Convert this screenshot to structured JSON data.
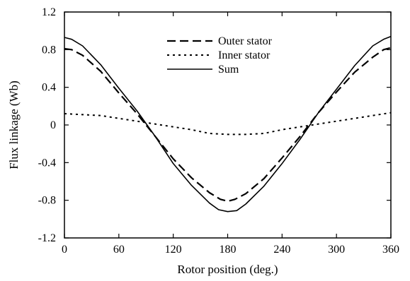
{
  "chart_data": {
    "type": "line",
    "title": "",
    "xlabel": "Rotor position (deg.)",
    "ylabel": "Flux linkage (Wb)",
    "xlim": [
      0,
      360
    ],
    "ylim": [
      -1.2,
      1.2
    ],
    "xticks": [
      0,
      60,
      120,
      180,
      240,
      300,
      360
    ],
    "yticks": [
      1.2,
      0.8,
      0.4,
      0,
      -0.4,
      -0.8,
      -1.2
    ],
    "xtick_labels": [
      "0",
      "60",
      "120",
      "180",
      "240",
      "300",
      "360"
    ],
    "ytick_labels": [
      "1.2",
      "0.8",
      "0.4",
      "0",
      "-0.4",
      "-0.8",
      "-1.2"
    ],
    "grid": false,
    "legend_position": "top-center",
    "series": [
      {
        "name": "Outer stator",
        "style": "dashed",
        "color": "#000000",
        "x": [
          0,
          8,
          20,
          40,
          60,
          80,
          100,
          120,
          140,
          160,
          172,
          180,
          188,
          200,
          220,
          240,
          260,
          280,
          300,
          320,
          340,
          352,
          360
        ],
        "y": [
          0.81,
          0.8,
          0.74,
          0.57,
          0.34,
          0.12,
          -0.12,
          -0.36,
          -0.56,
          -0.72,
          -0.79,
          -0.81,
          -0.79,
          -0.73,
          -0.57,
          -0.35,
          -0.12,
          0.13,
          0.35,
          0.56,
          0.72,
          0.8,
          0.82
        ]
      },
      {
        "name": "Inner stator",
        "style": "dotted",
        "color": "#000000",
        "x": [
          0,
          20,
          40,
          60,
          80,
          100,
          120,
          140,
          160,
          180,
          200,
          220,
          240,
          260,
          280,
          300,
          320,
          340,
          360
        ],
        "y": [
          0.12,
          0.11,
          0.1,
          0.07,
          0.04,
          0.01,
          -0.02,
          -0.05,
          -0.09,
          -0.1,
          -0.1,
          -0.09,
          -0.05,
          -0.02,
          0.01,
          0.04,
          0.07,
          0.1,
          0.13
        ]
      },
      {
        "name": "Sum",
        "style": "solid",
        "color": "#000000",
        "x": [
          0,
          8,
          20,
          40,
          60,
          80,
          100,
          120,
          140,
          160,
          170,
          180,
          190,
          200,
          220,
          240,
          260,
          280,
          300,
          320,
          340,
          352,
          360
        ],
        "y": [
          0.93,
          0.91,
          0.84,
          0.64,
          0.39,
          0.15,
          -0.12,
          -0.41,
          -0.64,
          -0.83,
          -0.9,
          -0.92,
          -0.91,
          -0.84,
          -0.65,
          -0.41,
          -0.15,
          0.13,
          0.38,
          0.63,
          0.84,
          0.91,
          0.94
        ]
      }
    ]
  }
}
